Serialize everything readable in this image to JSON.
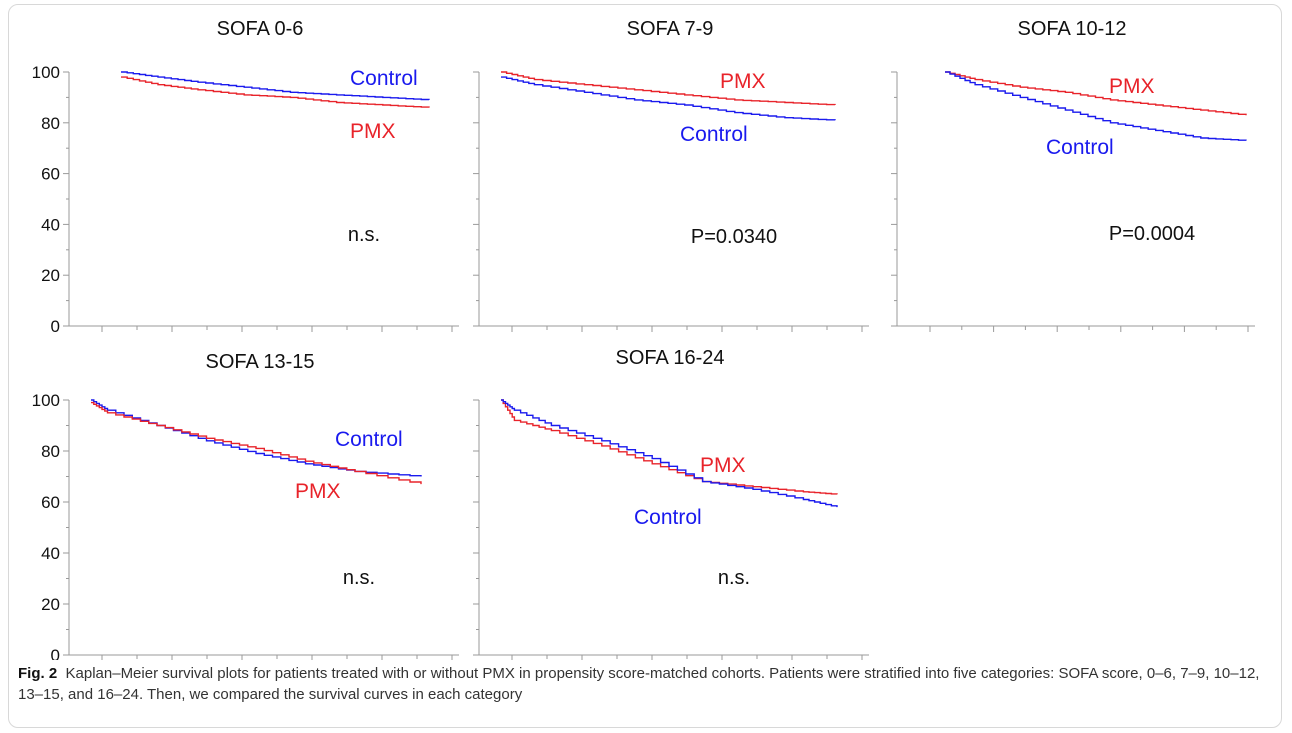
{
  "colors": {
    "control": "#1a1aee",
    "pmx": "#e8232a",
    "axis": "#9a9a9a",
    "title": "#111111"
  },
  "caption": {
    "label": "Fig. 2",
    "text": "Kaplan–Meier survival plots for patients treated with or without PMX in propensity score-matched cohorts. Patients were stratified into five categories: SOFA score, 0–6, 7–9, 10–12, 13–15, and 16–24. Then, we compared the survival curves in each category"
  },
  "chart_data": [
    {
      "type": "line",
      "title": "SOFA 0-6",
      "ylim": [
        0,
        100
      ],
      "yticks": [
        "0",
        "20",
        "40",
        "60",
        "80",
        "100"
      ],
      "stat_label": "n.s.",
      "series": [
        {
          "name": "Control",
          "key": "control",
          "x": [
            0,
            0.12,
            0.25,
            0.4,
            0.55,
            0.7,
            0.85,
            1.0
          ],
          "y": [
            100,
            98,
            96,
            94,
            92,
            91,
            90,
            89
          ]
        },
        {
          "name": "PMX",
          "key": "pmx",
          "x": [
            0,
            0.12,
            0.25,
            0.4,
            0.55,
            0.7,
            0.85,
            1.0
          ],
          "y": [
            98,
            95,
            93,
            91,
            90,
            88,
            87,
            86
          ]
        }
      ]
    },
    {
      "type": "line",
      "title": "SOFA 7-9",
      "ylim": [
        0,
        100
      ],
      "yticks": [
        "0",
        "20",
        "40",
        "60",
        "80",
        "100"
      ],
      "stat_label": "P=0.0340",
      "series": [
        {
          "name": "PMX",
          "key": "pmx",
          "x": [
            0,
            0.1,
            0.25,
            0.4,
            0.55,
            0.7,
            0.85,
            1.0
          ],
          "y": [
            100,
            97,
            95,
            93,
            91,
            89,
            88,
            87
          ]
        },
        {
          "name": "Control",
          "key": "control",
          "x": [
            0,
            0.1,
            0.25,
            0.4,
            0.55,
            0.7,
            0.85,
            1.0
          ],
          "y": [
            98,
            95,
            92,
            89,
            87,
            84,
            82,
            81
          ]
        }
      ]
    },
    {
      "type": "line",
      "title": "SOFA 10-12",
      "ylim": [
        0,
        100
      ],
      "yticks": [
        "0",
        "20",
        "40",
        "60",
        "80",
        "100"
      ],
      "stat_label": "P=0.0004",
      "series": [
        {
          "name": "PMX",
          "key": "pmx",
          "x": [
            0,
            0.1,
            0.25,
            0.4,
            0.55,
            0.7,
            0.85,
            1.0
          ],
          "y": [
            100,
            97,
            94,
            92,
            89,
            87,
            85,
            83
          ]
        },
        {
          "name": "Control",
          "key": "control",
          "x": [
            0,
            0.1,
            0.25,
            0.4,
            0.55,
            0.7,
            0.85,
            1.0
          ],
          "y": [
            100,
            95,
            90,
            85,
            80,
            77,
            74,
            73
          ]
        }
      ]
    },
    {
      "type": "line",
      "title": "SOFA 13-15",
      "ylim": [
        0,
        100
      ],
      "yticks": [
        "0",
        "20",
        "40",
        "60",
        "80",
        "100"
      ],
      "stat_label": "n.s.",
      "series": [
        {
          "name": "Control",
          "key": "control",
          "x": [
            0,
            0.05,
            0.2,
            0.35,
            0.5,
            0.65,
            0.8,
            1.0
          ],
          "y": [
            100,
            96,
            90,
            84,
            79,
            75,
            72,
            70
          ]
        },
        {
          "name": "PMX",
          "key": "pmx",
          "x": [
            0,
            0.05,
            0.2,
            0.35,
            0.5,
            0.65,
            0.8,
            1.0
          ],
          "y": [
            99,
            95,
            90,
            85,
            81,
            76,
            72,
            67
          ]
        }
      ]
    },
    {
      "type": "line",
      "title": "SOFA 16-24",
      "ylim": [
        0,
        100
      ],
      "yticks": [
        "0",
        "20",
        "40",
        "60",
        "80",
        "100"
      ],
      "stat_label": "n.s.",
      "series": [
        {
          "name": "PMX",
          "key": "pmx",
          "x": [
            0,
            0.04,
            0.15,
            0.3,
            0.45,
            0.6,
            0.75,
            0.9,
            1.0
          ],
          "y": [
            100,
            92,
            88,
            82,
            75,
            68,
            66,
            64,
            63
          ]
        },
        {
          "name": "Control",
          "key": "control",
          "x": [
            0,
            0.04,
            0.15,
            0.3,
            0.45,
            0.6,
            0.75,
            0.9,
            1.0
          ],
          "y": [
            100,
            96,
            90,
            84,
            77,
            68,
            65,
            61,
            58
          ]
        }
      ]
    }
  ]
}
